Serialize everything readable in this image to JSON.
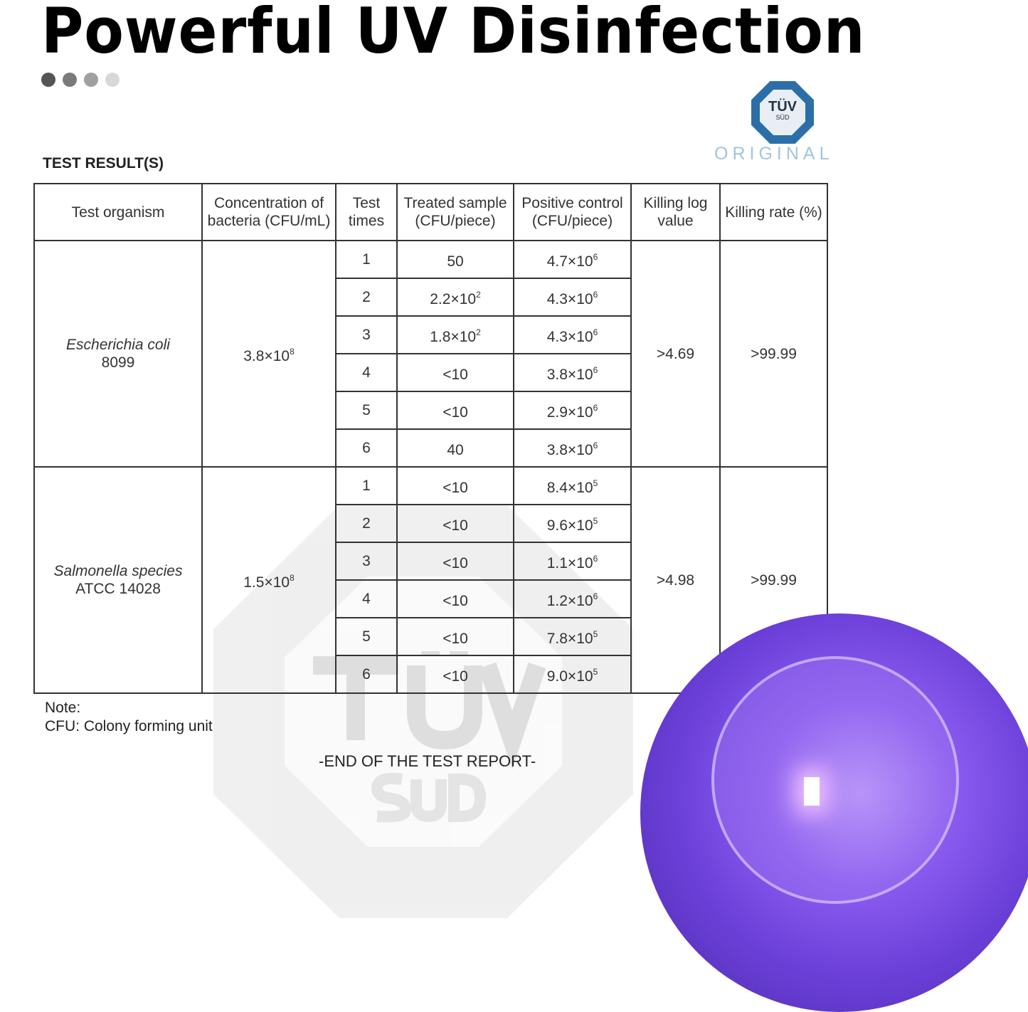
{
  "title": "Powerful UV Disinfection",
  "dots": [
    "#555555",
    "#7a7a7a",
    "#a0a0a0",
    "#d8d8d8"
  ],
  "logo": {
    "tuv": "TÜV",
    "sud": "SÜD",
    "original": "ORIGINAL"
  },
  "section_label": "TEST RESULT(S)",
  "table": {
    "headers": [
      "Test organism",
      "Concentration of bacteria (CFU/mL)",
      "Test times",
      "Treated sample (CFU/piece)",
      "Positive control (CFU/piece)",
      "Killing log value",
      "Killing rate (%)"
    ],
    "groups": [
      {
        "organism": "Escherichia coli",
        "strain": "8099",
        "concentration": {
          "base": "3.8×10",
          "exp": "8"
        },
        "killing_log": ">4.69",
        "killing_rate": ">99.99",
        "rows": [
          {
            "time": "1",
            "treated": {
              "base": "50",
              "exp": ""
            },
            "control": {
              "base": "4.7×10",
              "exp": "6"
            }
          },
          {
            "time": "2",
            "treated": {
              "base": "2.2×10",
              "exp": "2"
            },
            "control": {
              "base": "4.3×10",
              "exp": "6"
            }
          },
          {
            "time": "3",
            "treated": {
              "base": "1.8×10",
              "exp": "2"
            },
            "control": {
              "base": "4.3×10",
              "exp": "6"
            }
          },
          {
            "time": "4",
            "treated": {
              "base": "<10",
              "exp": ""
            },
            "control": {
              "base": "3.8×10",
              "exp": "6"
            }
          },
          {
            "time": "5",
            "treated": {
              "base": "<10",
              "exp": ""
            },
            "control": {
              "base": "2.9×10",
              "exp": "6"
            }
          },
          {
            "time": "6",
            "treated": {
              "base": "40",
              "exp": ""
            },
            "control": {
              "base": "3.8×10",
              "exp": "6"
            }
          }
        ]
      },
      {
        "organism": "Salmonella species",
        "strain": "ATCC 14028",
        "concentration": {
          "base": "1.5×10",
          "exp": "8"
        },
        "killing_log": ">4.98",
        "killing_rate": ">99.99",
        "rows": [
          {
            "time": "1",
            "treated": {
              "base": "<10",
              "exp": ""
            },
            "control": {
              "base": "8.4×10",
              "exp": "5"
            }
          },
          {
            "time": "2",
            "treated": {
              "base": "<10",
              "exp": ""
            },
            "control": {
              "base": "9.6×10",
              "exp": "5"
            }
          },
          {
            "time": "3",
            "treated": {
              "base": "<10",
              "exp": ""
            },
            "control": {
              "base": "1.1×10",
              "exp": "6"
            }
          },
          {
            "time": "4",
            "treated": {
              "base": "<10",
              "exp": ""
            },
            "control": {
              "base": "1.2×10",
              "exp": "6"
            }
          },
          {
            "time": "5",
            "treated": {
              "base": "<10",
              "exp": ""
            },
            "control": {
              "base": "7.8×10",
              "exp": "5"
            }
          },
          {
            "time": "6",
            "treated": {
              "base": "<10",
              "exp": ""
            },
            "control": {
              "base": "9.0×10",
              "exp": "5"
            }
          }
        ]
      }
    ]
  },
  "note": {
    "label": "Note:",
    "text": "CFU: Colony forming unit"
  },
  "end_report": "-END OF THE TEST REPORT-",
  "watermark": {
    "tuv": "TÜV",
    "sud": "SÜD"
  }
}
